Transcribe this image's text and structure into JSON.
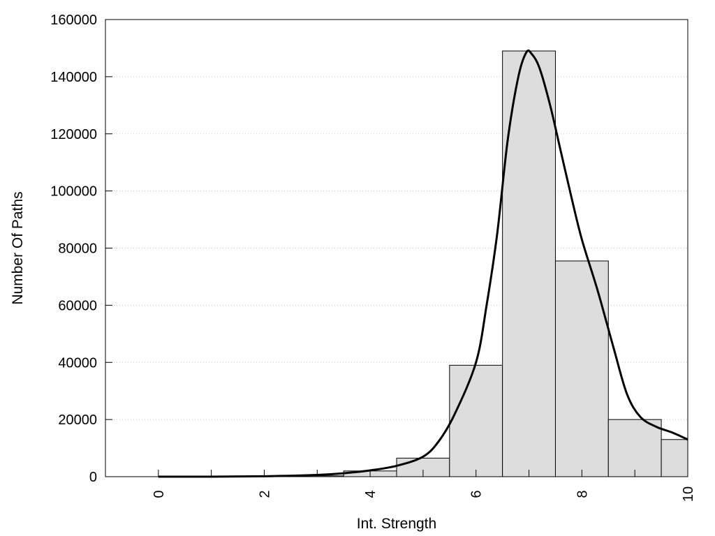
{
  "chart_data": {
    "type": "bar",
    "title": "",
    "xlabel": "Int. Strength",
    "ylabel": "Number Of Paths",
    "xlim": [
      -1,
      10
    ],
    "ylim": [
      0,
      160000
    ],
    "grid": true,
    "legend": "none",
    "colors": {
      "bar_fill": "#dddddd",
      "bar_stroke": "#000000",
      "curve": "#000000",
      "grid": "#cccccc"
    },
    "x_ticks": [
      0,
      2,
      4,
      6,
      8,
      10
    ],
    "y_ticks": [
      0,
      20000,
      40000,
      60000,
      80000,
      100000,
      120000,
      140000,
      160000
    ],
    "bins": [
      {
        "x": 0,
        "value": 0
      },
      {
        "x": 1,
        "value": 0
      },
      {
        "x": 2,
        "value": 100
      },
      {
        "x": 3,
        "value": 300
      },
      {
        "x": 4,
        "value": 2000
      },
      {
        "x": 5,
        "value": 6500
      },
      {
        "x": 6,
        "value": 39000
      },
      {
        "x": 7,
        "value": 149000
      },
      {
        "x": 8,
        "value": 75500
      },
      {
        "x": 9,
        "value": 20000
      },
      {
        "x": 10,
        "value": 13000
      }
    ],
    "curve": [
      {
        "x": 0,
        "y": 0
      },
      {
        "x": 1,
        "y": 0
      },
      {
        "x": 2,
        "y": 150
      },
      {
        "x": 3,
        "y": 600
      },
      {
        "x": 3.5,
        "y": 1200
      },
      {
        "x": 4,
        "y": 2200
      },
      {
        "x": 4.5,
        "y": 3800
      },
      {
        "x": 5,
        "y": 7000
      },
      {
        "x": 5.3,
        "y": 12500
      },
      {
        "x": 5.6,
        "y": 22000
      },
      {
        "x": 6,
        "y": 40000
      },
      {
        "x": 6.2,
        "y": 60000
      },
      {
        "x": 6.4,
        "y": 85000
      },
      {
        "x": 6.6,
        "y": 118000
      },
      {
        "x": 6.8,
        "y": 140000
      },
      {
        "x": 6.95,
        "y": 148500
      },
      {
        "x": 7.05,
        "y": 148000
      },
      {
        "x": 7.2,
        "y": 143000
      },
      {
        "x": 7.4,
        "y": 130000
      },
      {
        "x": 7.6,
        "y": 114000
      },
      {
        "x": 7.8,
        "y": 98000
      },
      {
        "x": 8,
        "y": 83000
      },
      {
        "x": 8.3,
        "y": 65000
      },
      {
        "x": 8.6,
        "y": 45000
      },
      {
        "x": 8.85,
        "y": 29000
      },
      {
        "x": 9.1,
        "y": 21000
      },
      {
        "x": 9.4,
        "y": 17500
      },
      {
        "x": 9.7,
        "y": 15500
      },
      {
        "x": 10,
        "y": 13000
      }
    ]
  }
}
